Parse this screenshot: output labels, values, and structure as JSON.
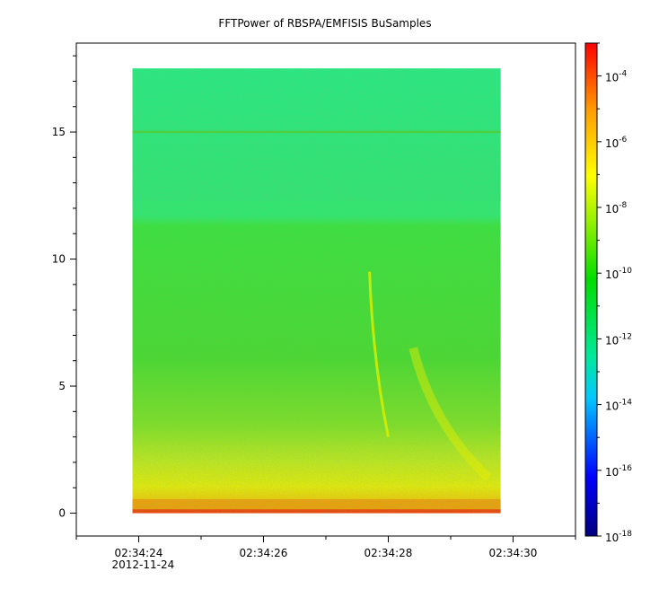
{
  "chart_data": {
    "type": "heatmap",
    "title": "FFTPower of RBSPA/EMFISIS  BuSamples",
    "xlabel": "",
    "ylabel": "",
    "x_ticks": [
      "02:34:24",
      "02:34:26",
      "02:34:28",
      "02:34:30"
    ],
    "x_date_label": "2012-11-24",
    "x_data_range": [
      "02:34:23.9",
      "02:34:29.8"
    ],
    "x_axis_range": [
      "02:34:23.0",
      "02:34:31.0"
    ],
    "y_ticks": [
      0,
      5,
      10,
      15
    ],
    "ylim": [
      -0.9,
      18.5
    ],
    "y_data_range": [
      0,
      17.5
    ],
    "colorbar": {
      "scale": "log",
      "range": [
        "1e-18",
        "1e-3"
      ],
      "ticks": [
        {
          "base": "10",
          "exp": "-4"
        },
        {
          "base": "10",
          "exp": "-6"
        },
        {
          "base": "10",
          "exp": "-8"
        },
        {
          "base": "10",
          "exp": "-10"
        },
        {
          "base": "10",
          "exp": "-12"
        },
        {
          "base": "10",
          "exp": "-14"
        },
        {
          "base": "10",
          "exp": "-16"
        },
        {
          "base": "10",
          "exp": "-18"
        }
      ]
    },
    "features": [
      {
        "description_band": "background above ~12.3 is lower power (cyan-green)"
      },
      {
        "description_band": "narrow line near 15.0"
      },
      {
        "description_band": "strong power near 0-0.5 (orange-red), yellow below ~3"
      }
    ],
    "colors": {
      "low": "#00007f",
      "mid_low": "#00c8ff",
      "mid": "#00d900",
      "mid_high": "#ffff00",
      "high": "#ff0000"
    }
  }
}
